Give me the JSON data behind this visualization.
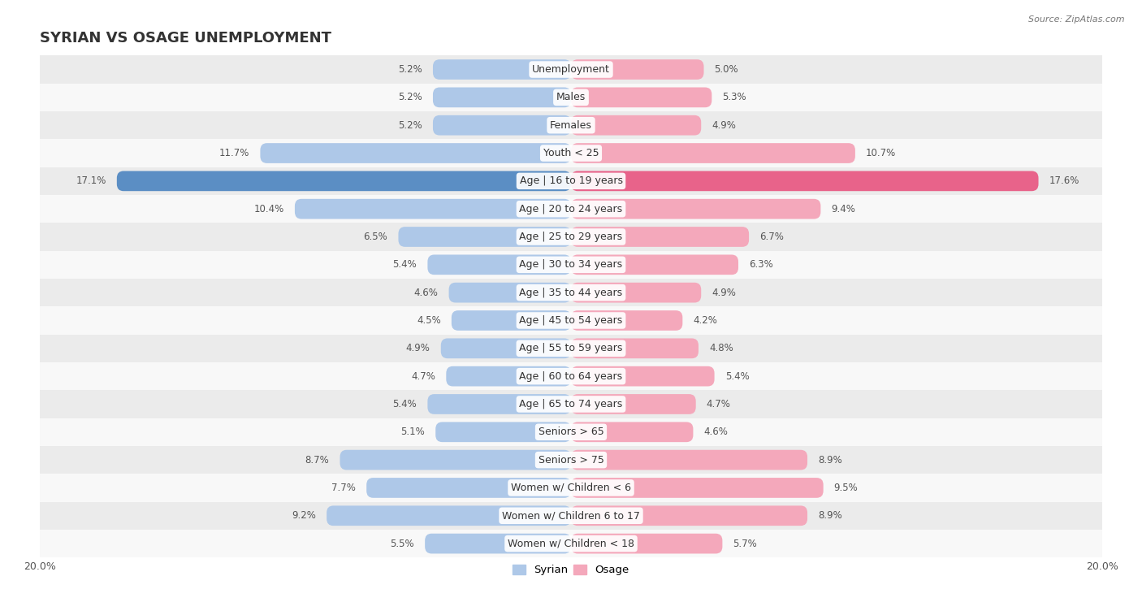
{
  "title": "SYRIAN VS OSAGE UNEMPLOYMENT",
  "source": "Source: ZipAtlas.com",
  "categories": [
    "Unemployment",
    "Males",
    "Females",
    "Youth < 25",
    "Age | 16 to 19 years",
    "Age | 20 to 24 years",
    "Age | 25 to 29 years",
    "Age | 30 to 34 years",
    "Age | 35 to 44 years",
    "Age | 45 to 54 years",
    "Age | 55 to 59 years",
    "Age | 60 to 64 years",
    "Age | 65 to 74 years",
    "Seniors > 65",
    "Seniors > 75",
    "Women w/ Children < 6",
    "Women w/ Children 6 to 17",
    "Women w/ Children < 18"
  ],
  "syrian_values": [
    5.2,
    5.2,
    5.2,
    11.7,
    17.1,
    10.4,
    6.5,
    5.4,
    4.6,
    4.5,
    4.9,
    4.7,
    5.4,
    5.1,
    8.7,
    7.7,
    9.2,
    5.5
  ],
  "osage_values": [
    5.0,
    5.3,
    4.9,
    10.7,
    17.6,
    9.4,
    6.7,
    6.3,
    4.9,
    4.2,
    4.8,
    5.4,
    4.7,
    4.6,
    8.9,
    9.5,
    8.9,
    5.7
  ],
  "syrian_color": "#aec8e8",
  "osage_color": "#f4a8bb",
  "highlight_syrian_color": "#5b8ec4",
  "highlight_osage_color": "#e8638a",
  "highlight_row": 4,
  "bg_color_odd": "#ebebeb",
  "bg_color_even": "#f8f8f8",
  "bar_height": 0.72,
  "xlim": 20.0,
  "legend_labels": [
    "Syrian",
    "Osage"
  ],
  "title_fontsize": 13,
  "label_fontsize": 9,
  "value_fontsize": 8.5,
  "axis_fontsize": 9,
  "label_color": "#555555"
}
